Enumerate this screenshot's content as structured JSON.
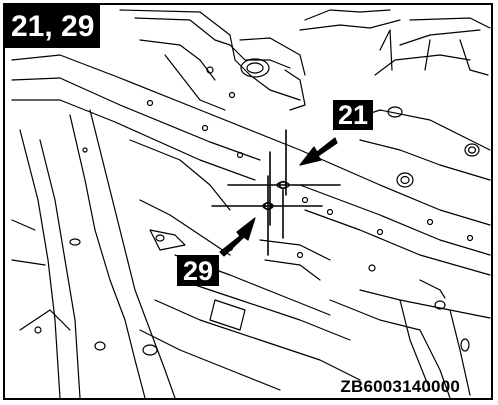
{
  "figure": {
    "title_tag": "21, 29",
    "callouts": [
      {
        "id": "21",
        "label": "21"
      },
      {
        "id": "29",
        "label": "29"
      }
    ],
    "reference_code": "ZB6003140000"
  },
  "colors": {
    "line": "#000000",
    "background": "#ffffff",
    "tag_background": "#000000",
    "tag_text": "#ffffff"
  }
}
